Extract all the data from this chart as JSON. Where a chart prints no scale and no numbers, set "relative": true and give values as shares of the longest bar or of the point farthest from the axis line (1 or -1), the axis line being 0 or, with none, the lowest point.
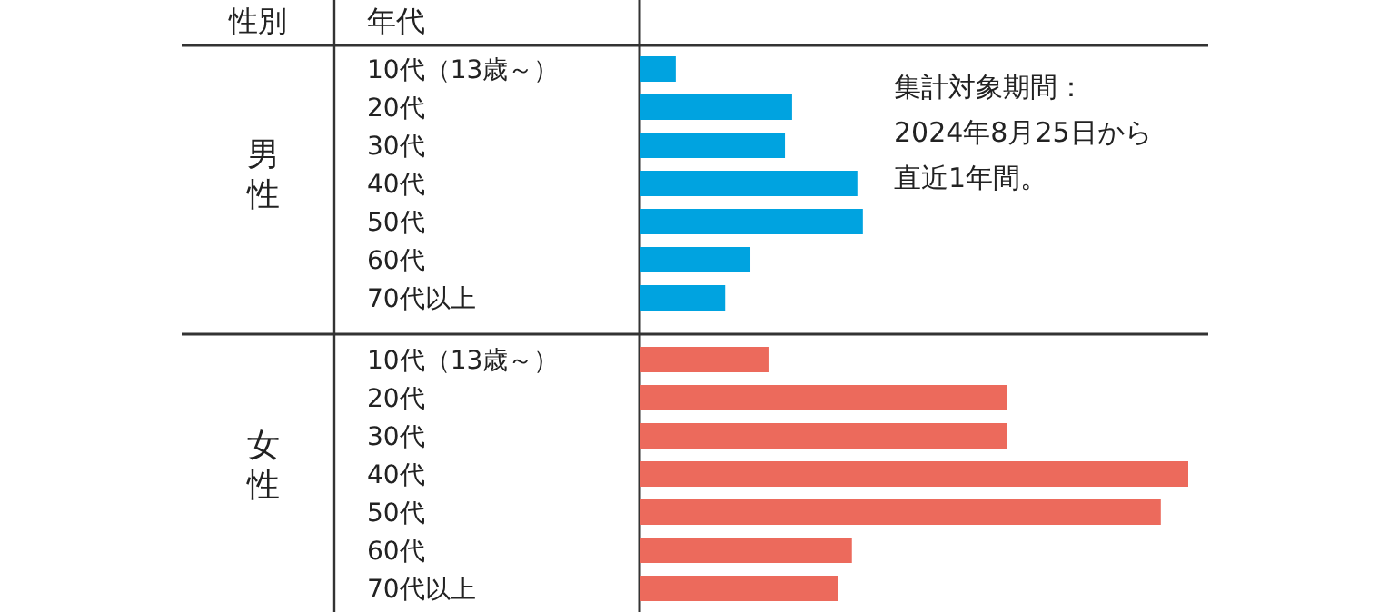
{
  "chart_data": {
    "type": "bar",
    "orientation": "horizontal",
    "relative": true,
    "categories": [
      "10代（13歳～）",
      "20代",
      "30代",
      "40代",
      "50代",
      "60代",
      "70代以上",
      "10代（13歳～）",
      "20代",
      "30代",
      "40代",
      "50代",
      "60代",
      "70代以上"
    ],
    "series": [
      {
        "color": "#00a3e0",
        "values": [
          0.066,
          0.278,
          0.265,
          0.397,
          0.407,
          0.202,
          0.156,
          null,
          null,
          null,
          null,
          null,
          null,
          null
        ]
      },
      {
        "color": "#ec6a5c",
        "values": [
          null,
          null,
          null,
          null,
          null,
          null,
          null,
          0.235,
          0.669,
          0.669,
          1,
          0.95,
          0.387,
          0.361
        ]
      }
    ],
    "annotations": [
      "性別",
      "年代",
      "集計対象期間：",
      "2024年8月25日から",
      "直近1年間。",
      "男性",
      "女性"
    ]
  }
}
